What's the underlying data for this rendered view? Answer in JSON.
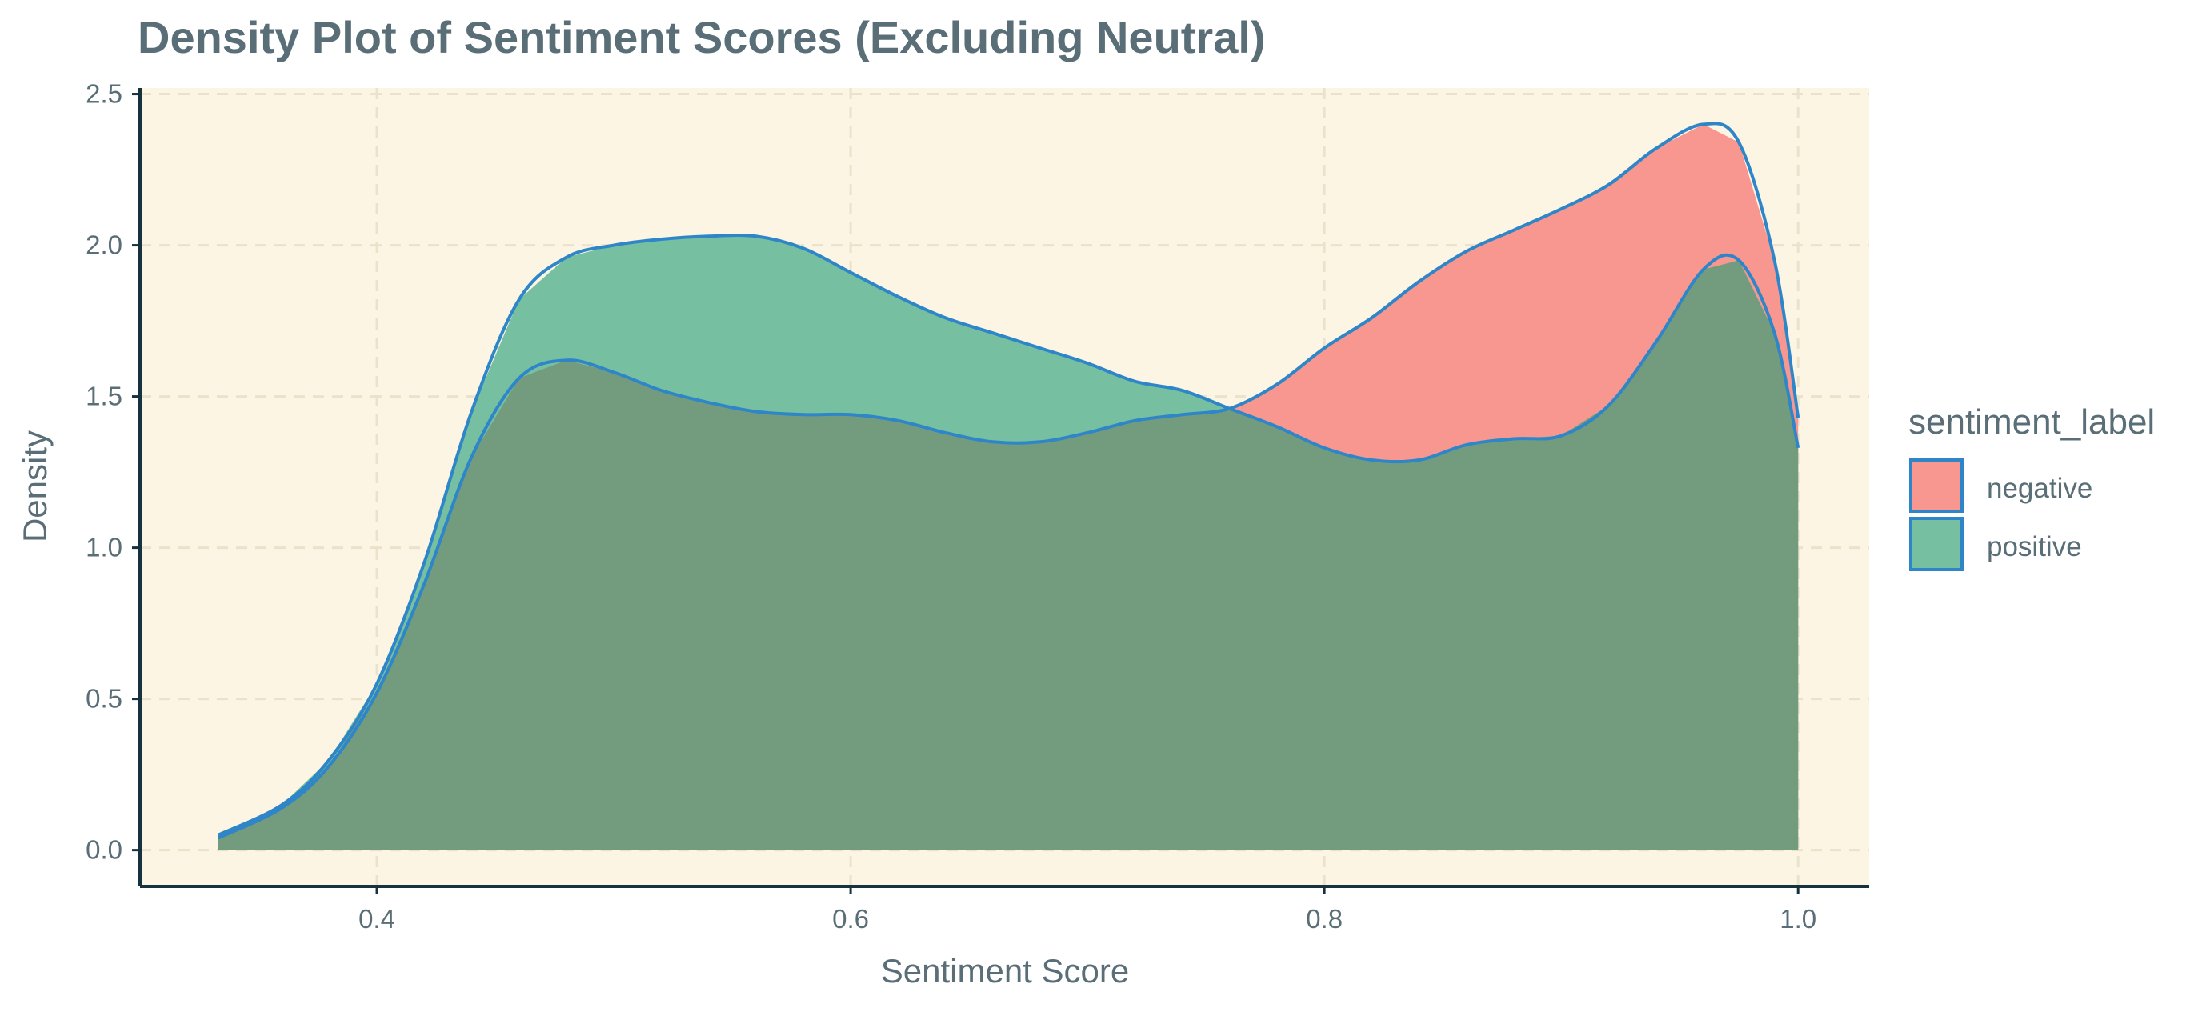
{
  "chart_data": {
    "type": "area",
    "title": "Density Plot of Sentiment Scores (Excluding Neutral)",
    "xlabel": "Sentiment Score",
    "ylabel": "Density",
    "xlim": [
      0.3,
      1.03
    ],
    "ylim": [
      -0.12,
      2.52
    ],
    "x_ticks": [
      0.4,
      0.6,
      0.8,
      1.0
    ],
    "x_tick_labels": [
      "0.4",
      "0.6",
      "0.8",
      "1.0"
    ],
    "y_ticks": [
      0.0,
      0.5,
      1.0,
      1.5,
      2.0,
      2.5
    ],
    "y_tick_labels": [
      "0.0",
      "0.5",
      "1.0",
      "1.5",
      "2.0",
      "2.5"
    ],
    "grid": true,
    "legend": {
      "title": "sentiment_label",
      "placement": "right",
      "entries": [
        "negative",
        "positive"
      ]
    },
    "colors": {
      "panel_background": "#fcf5e3",
      "grid": "#ebe2cc",
      "axis_line": "#16323e",
      "outline": "#2e86c8",
      "negative_fill": "#f7978f",
      "positive_fill": "#76bfa1",
      "overlap_fill": "#739c7f"
    },
    "series": [
      {
        "name": "negative",
        "x": [
          0.333,
          0.36,
          0.38,
          0.4,
          0.42,
          0.44,
          0.46,
          0.48,
          0.5,
          0.52,
          0.54,
          0.56,
          0.58,
          0.6,
          0.62,
          0.64,
          0.66,
          0.68,
          0.7,
          0.72,
          0.74,
          0.76,
          0.78,
          0.8,
          0.82,
          0.84,
          0.86,
          0.88,
          0.9,
          0.92,
          0.94,
          0.96,
          0.975,
          0.99,
          1.0
        ],
        "values": [
          0.04,
          0.14,
          0.28,
          0.52,
          0.88,
          1.3,
          1.56,
          1.62,
          1.58,
          1.52,
          1.48,
          1.45,
          1.44,
          1.44,
          1.42,
          1.38,
          1.35,
          1.35,
          1.38,
          1.42,
          1.44,
          1.46,
          1.54,
          1.66,
          1.76,
          1.88,
          1.98,
          2.05,
          2.12,
          2.2,
          2.32,
          2.4,
          2.34,
          1.95,
          1.43
        ]
      },
      {
        "name": "positive",
        "x": [
          0.333,
          0.36,
          0.38,
          0.4,
          0.42,
          0.44,
          0.46,
          0.48,
          0.5,
          0.52,
          0.54,
          0.56,
          0.58,
          0.6,
          0.62,
          0.64,
          0.66,
          0.68,
          0.7,
          0.72,
          0.74,
          0.76,
          0.78,
          0.8,
          0.82,
          0.84,
          0.86,
          0.88,
          0.9,
          0.92,
          0.94,
          0.96,
          0.975,
          0.99,
          1.0
        ],
        "values": [
          0.05,
          0.15,
          0.3,
          0.55,
          0.95,
          1.45,
          1.82,
          1.96,
          2.0,
          2.02,
          2.03,
          2.03,
          1.99,
          1.91,
          1.83,
          1.76,
          1.71,
          1.66,
          1.61,
          1.55,
          1.52,
          1.46,
          1.4,
          1.33,
          1.29,
          1.29,
          1.34,
          1.36,
          1.37,
          1.47,
          1.68,
          1.92,
          1.95,
          1.71,
          1.33
        ]
      }
    ]
  }
}
